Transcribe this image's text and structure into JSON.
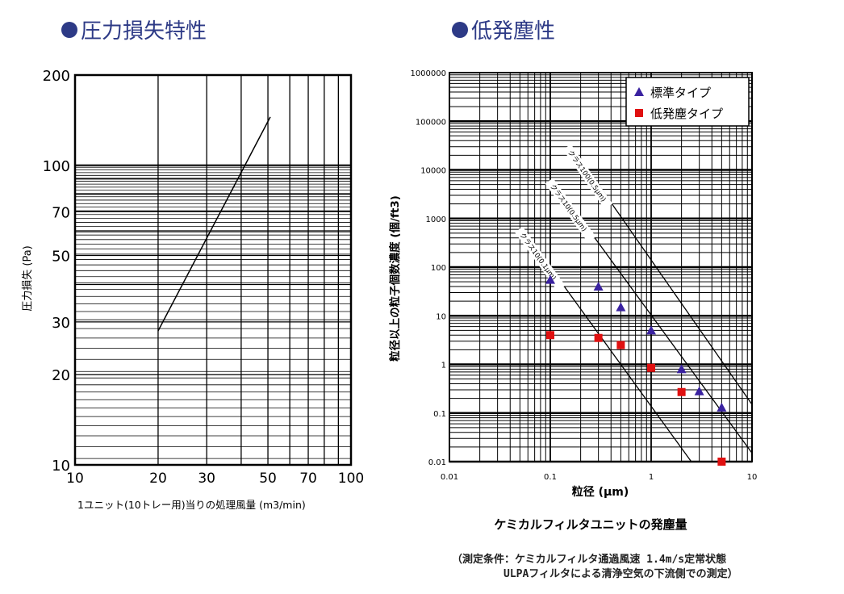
{
  "headings": {
    "left": "圧力損失特性",
    "right": "低発塵性"
  },
  "charts": [
    {
      "type": "line",
      "xlabel": "1ユニット(10トレー用)当りの処理風量 (m3/min)",
      "ylabel": "圧力損失 (Pa)",
      "xscale": "log",
      "yscale": "log",
      "xlim": [
        10,
        100
      ],
      "ylim": [
        10,
        200
      ],
      "xticks": [
        10,
        20,
        30,
        50,
        70,
        100
      ],
      "yticks": [
        10,
        20,
        30,
        50,
        70,
        100,
        200
      ],
      "grid": true,
      "series": [
        {
          "x": [
            20,
            51
          ],
          "y": [
            28,
            145
          ]
        }
      ]
    },
    {
      "type": "scatter",
      "title": "ケミカルフィルタユニットの発塵量",
      "xlabel": "粒径 (μm)",
      "ylabel": "粒径以上の粒子個数濃度 (個/ft3)",
      "xscale": "log",
      "yscale": "log",
      "xlim": [
        0.01,
        10
      ],
      "ylim": [
        0.01,
        1000000
      ],
      "xticks": [
        "0.01",
        "0.1",
        "1",
        "10"
      ],
      "yticks": [
        "0.01",
        "0.1",
        "1",
        "10",
        "100",
        "1000",
        "10000",
        "100000",
        "1000000"
      ],
      "grid": true,
      "legend_position": "top-right",
      "legend": [
        {
          "label": "標準タイプ",
          "marker": "triangle",
          "color": "#3a22a0"
        },
        {
          "label": "低発塵タイプ",
          "marker": "square",
          "color": "#e01010"
        }
      ],
      "series": [
        {
          "x": [
            0.1,
            0.3,
            0.5,
            1,
            2,
            3,
            5
          ],
          "y": [
            55,
            40,
            15,
            5,
            0.8,
            0.28,
            0.13
          ]
        },
        {
          "x": [
            0.1,
            0.3,
            0.5,
            1,
            2,
            5
          ],
          "y": [
            4,
            3.5,
            2.5,
            0.85,
            0.27,
            0.01
          ]
        }
      ],
      "class_lines": [
        {
          "label": "クラス100(0.5μm)",
          "x": [
            0.3,
            10
          ],
          "y": [
            5000,
            0.15
          ]
        },
        {
          "label": "クラス10(0.5μm)",
          "x": [
            0.2,
            10
          ],
          "y": [
            1000,
            0.015
          ]
        },
        {
          "label": "クラス10(0.1μm)",
          "x": [
            0.1,
            2.5
          ],
          "y": [
            100,
            0.01
          ]
        }
      ]
    }
  ],
  "notes": {
    "line1": "（測定条件：ケミカルフィルタ通過風速 1.4m/s定常状態",
    "line2": "ULPAフィルタによる清浄空気の下流側での測定）"
  },
  "colors": {
    "heading": "#2d3a86",
    "standard": "#3a22a0",
    "low_dust": "#e01010"
  }
}
